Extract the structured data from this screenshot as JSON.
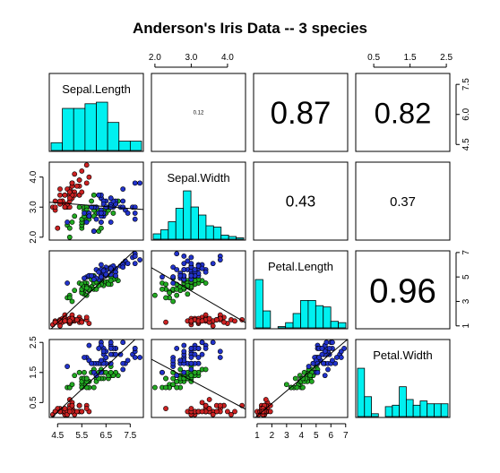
{
  "chart_data": {
    "type": "scatter",
    "title": "Anderson's Iris Data -- 3 species",
    "variables": [
      "Sepal.Length",
      "Sepal.Width",
      "Petal.Length",
      "Petal.Width"
    ],
    "ranges": {
      "Sepal.Length": [
        4.3,
        7.9
      ],
      "Sepal.Width": [
        2.0,
        4.4
      ],
      "Petal.Length": [
        1.0,
        6.9
      ],
      "Petal.Width": [
        0.1,
        2.5
      ]
    },
    "ticks": {
      "Sepal.Length": [
        4.5,
        5.5,
        6.5,
        7.5
      ],
      "Sepal.Width": [
        2.0,
        3.0,
        4.0
      ],
      "Petal.Length": [
        1,
        3,
        5,
        7
      ],
      "Petal.Width": [
        0.5,
        1.5,
        2.5
      ]
    },
    "top_axis_ticks": {
      "Sepal.Width": [
        2.0,
        3.0,
        4.0
      ],
      "Petal.Width": [
        0.5,
        1.5,
        2.5
      ]
    },
    "left_axis_ticks": {
      "Sepal.Width": [
        2.0,
        3.0,
        4.0
      ],
      "Petal.Width": [
        0.5,
        1.5,
        2.5
      ]
    },
    "bottom_axis_ticks": {
      "Sepal.Length": [
        4.5,
        5.5,
        6.5,
        7.5
      ],
      "Petal.Length": [
        1,
        2,
        3,
        4,
        5,
        6,
        7
      ]
    },
    "right_axis_ticks": {
      "Sepal.Length": [
        4.5,
        6.0,
        7.5
      ],
      "Petal.Length": [
        1,
        3,
        5,
        7
      ]
    },
    "correlations": [
      {
        "row": 0,
        "col": 1,
        "text": "0.12"
      },
      {
        "row": 0,
        "col": 2,
        "text": "0.87"
      },
      {
        "row": 0,
        "col": 3,
        "text": "0.82"
      },
      {
        "row": 1,
        "col": 2,
        "text": "0.43"
      },
      {
        "row": 1,
        "col": 3,
        "text": "0.37"
      },
      {
        "row": 2,
        "col": 3,
        "text": "0.96"
      }
    ],
    "histograms": {
      "Sepal.Length": {
        "breaks": [
          4.0,
          4.5,
          5.0,
          5.5,
          6.0,
          6.5,
          7.0,
          7.5,
          8.0
        ],
        "counts": [
          5,
          27,
          27,
          30,
          31,
          18,
          6,
          6
        ]
      },
      "Sepal.Width": {
        "breaks": [
          2.0,
          2.2,
          2.4,
          2.6,
          2.8,
          3.0,
          3.2,
          3.4,
          3.6,
          3.8,
          4.0,
          4.2,
          4.4
        ],
        "counts": [
          4,
          7,
          13,
          23,
          36,
          24,
          18,
          10,
          9,
          3,
          2,
          1
        ]
      },
      "Petal.Length": {
        "breaks": [
          1.0,
          1.5,
          2.0,
          2.5,
          3.0,
          3.5,
          4.0,
          4.5,
          5.0,
          5.5,
          6.0,
          6.5,
          7.0
        ],
        "counts": [
          37,
          13,
          0,
          1,
          4,
          11,
          21,
          21,
          17,
          16,
          5,
          4
        ]
      },
      "Petal.Width": {
        "breaks": [
          0.0,
          0.2,
          0.4,
          0.6,
          0.8,
          1.0,
          1.2,
          1.4,
          1.6,
          1.8,
          2.0,
          2.2,
          2.4,
          2.6
        ],
        "counts": [
          34,
          14,
          2,
          0,
          7,
          8,
          21,
          12,
          8,
          11,
          9,
          9,
          9
        ]
      }
    },
    "fit_lines": [
      {
        "x": "Sepal.Length",
        "y": "Sepal.Width",
        "intercept": 3.419,
        "slope": -0.0619
      },
      {
        "x": "Sepal.Length",
        "y": "Petal.Length",
        "intercept": -7.101,
        "slope": 1.858
      },
      {
        "x": "Sepal.Length",
        "y": "Petal.Width",
        "intercept": -3.2,
        "slope": 0.753
      },
      {
        "x": "Sepal.Width",
        "y": "Petal.Length",
        "intercept": 9.063,
        "slope": -1.735
      },
      {
        "x": "Sepal.Width",
        "y": "Petal.Width",
        "intercept": 3.157,
        "slope": -0.64
      },
      {
        "x": "Petal.Length",
        "y": "Petal.Width",
        "intercept": -0.363,
        "slope": 0.416
      }
    ],
    "species_colors": {
      "setosa": "#cc2222",
      "versicolor": "#22aa22",
      "virginica": "#2233cc"
    },
    "histogram_fill": "#00f0f0",
    "series": [
      {
        "species": "setosa",
        "values": [
          [
            5.1,
            3.5,
            1.4,
            0.2
          ],
          [
            4.9,
            3.0,
            1.4,
            0.2
          ],
          [
            4.7,
            3.2,
            1.3,
            0.2
          ],
          [
            4.6,
            3.1,
            1.5,
            0.2
          ],
          [
            5.0,
            3.6,
            1.4,
            0.2
          ],
          [
            5.4,
            3.9,
            1.7,
            0.4
          ],
          [
            4.6,
            3.4,
            1.4,
            0.3
          ],
          [
            5.0,
            3.4,
            1.5,
            0.2
          ],
          [
            4.4,
            2.9,
            1.4,
            0.2
          ],
          [
            4.9,
            3.1,
            1.5,
            0.1
          ],
          [
            5.4,
            3.7,
            1.5,
            0.2
          ],
          [
            4.8,
            3.4,
            1.6,
            0.2
          ],
          [
            4.8,
            3.0,
            1.4,
            0.1
          ],
          [
            4.3,
            3.0,
            1.1,
            0.1
          ],
          [
            5.8,
            4.0,
            1.2,
            0.2
          ],
          [
            5.7,
            4.4,
            1.5,
            0.4
          ],
          [
            5.4,
            3.9,
            1.3,
            0.4
          ],
          [
            5.1,
            3.5,
            1.4,
            0.3
          ],
          [
            5.7,
            3.8,
            1.7,
            0.3
          ],
          [
            5.1,
            3.8,
            1.5,
            0.3
          ],
          [
            5.4,
            3.4,
            1.7,
            0.2
          ],
          [
            5.1,
            3.7,
            1.5,
            0.4
          ],
          [
            4.6,
            3.6,
            1.0,
            0.2
          ],
          [
            5.1,
            3.3,
            1.7,
            0.5
          ],
          [
            4.8,
            3.4,
            1.9,
            0.2
          ],
          [
            5.0,
            3.0,
            1.6,
            0.2
          ],
          [
            5.0,
            3.4,
            1.6,
            0.4
          ],
          [
            5.2,
            3.5,
            1.5,
            0.2
          ],
          [
            5.2,
            3.4,
            1.4,
            0.2
          ],
          [
            4.7,
            3.2,
            1.6,
            0.2
          ],
          [
            4.8,
            3.1,
            1.6,
            0.2
          ],
          [
            5.4,
            3.4,
            1.5,
            0.4
          ],
          [
            5.2,
            4.1,
            1.5,
            0.1
          ],
          [
            5.5,
            4.2,
            1.4,
            0.2
          ],
          [
            4.9,
            3.1,
            1.5,
            0.2
          ],
          [
            5.0,
            3.2,
            1.2,
            0.2
          ],
          [
            5.5,
            3.5,
            1.3,
            0.2
          ],
          [
            4.9,
            3.6,
            1.4,
            0.1
          ],
          [
            4.4,
            3.0,
            1.3,
            0.2
          ],
          [
            5.1,
            3.4,
            1.5,
            0.2
          ],
          [
            5.0,
            3.5,
            1.3,
            0.3
          ],
          [
            4.5,
            2.3,
            1.3,
            0.3
          ],
          [
            4.4,
            3.2,
            1.3,
            0.2
          ],
          [
            5.0,
            3.5,
            1.6,
            0.6
          ],
          [
            5.1,
            3.8,
            1.9,
            0.4
          ],
          [
            4.8,
            3.0,
            1.4,
            0.3
          ],
          [
            5.1,
            3.8,
            1.6,
            0.2
          ],
          [
            4.6,
            3.2,
            1.4,
            0.2
          ],
          [
            5.3,
            3.7,
            1.5,
            0.2
          ],
          [
            5.0,
            3.3,
            1.4,
            0.2
          ]
        ]
      },
      {
        "species": "versicolor",
        "values": [
          [
            7.0,
            3.2,
            4.7,
            1.4
          ],
          [
            6.4,
            3.2,
            4.5,
            1.5
          ],
          [
            6.9,
            3.1,
            4.9,
            1.5
          ],
          [
            5.5,
            2.3,
            4.0,
            1.3
          ],
          [
            6.5,
            2.8,
            4.6,
            1.5
          ],
          [
            5.7,
            2.8,
            4.5,
            1.3
          ],
          [
            6.3,
            3.3,
            4.7,
            1.6
          ],
          [
            4.9,
            2.4,
            3.3,
            1.0
          ],
          [
            6.6,
            2.9,
            4.6,
            1.3
          ],
          [
            5.2,
            2.7,
            3.9,
            1.4
          ],
          [
            5.0,
            2.0,
            3.5,
            1.0
          ],
          [
            5.9,
            3.0,
            4.2,
            1.5
          ],
          [
            6.0,
            2.2,
            4.0,
            1.0
          ],
          [
            6.1,
            2.9,
            4.7,
            1.4
          ],
          [
            5.6,
            2.9,
            3.6,
            1.3
          ],
          [
            6.7,
            3.1,
            4.4,
            1.4
          ],
          [
            5.6,
            3.0,
            4.5,
            1.5
          ],
          [
            5.8,
            2.7,
            4.1,
            1.0
          ],
          [
            6.2,
            2.2,
            4.5,
            1.5
          ],
          [
            5.6,
            2.5,
            3.9,
            1.1
          ],
          [
            5.9,
            3.2,
            4.8,
            1.8
          ],
          [
            6.1,
            2.8,
            4.0,
            1.3
          ],
          [
            6.3,
            2.5,
            4.9,
            1.5
          ],
          [
            6.1,
            2.8,
            4.7,
            1.2
          ],
          [
            6.4,
            2.9,
            4.3,
            1.3
          ],
          [
            6.6,
            3.0,
            4.4,
            1.4
          ],
          [
            6.8,
            2.8,
            4.8,
            1.4
          ],
          [
            6.7,
            3.0,
            5.0,
            1.7
          ],
          [
            6.0,
            2.9,
            4.5,
            1.5
          ],
          [
            5.7,
            2.6,
            3.5,
            1.0
          ],
          [
            5.5,
            2.4,
            3.8,
            1.1
          ],
          [
            5.5,
            2.4,
            3.7,
            1.0
          ],
          [
            5.8,
            2.7,
            3.9,
            1.2
          ],
          [
            6.0,
            2.7,
            5.1,
            1.6
          ],
          [
            5.4,
            3.0,
            4.5,
            1.5
          ],
          [
            6.0,
            3.4,
            4.5,
            1.6
          ],
          [
            6.7,
            3.1,
            4.7,
            1.5
          ],
          [
            6.3,
            2.3,
            4.4,
            1.3
          ],
          [
            5.6,
            3.0,
            4.1,
            1.3
          ],
          [
            5.5,
            2.5,
            4.0,
            1.3
          ],
          [
            5.5,
            2.6,
            4.4,
            1.2
          ],
          [
            6.1,
            3.0,
            4.6,
            1.4
          ],
          [
            5.8,
            2.6,
            4.0,
            1.2
          ],
          [
            5.0,
            2.3,
            3.3,
            1.0
          ],
          [
            5.6,
            2.7,
            4.2,
            1.3
          ],
          [
            5.7,
            3.0,
            4.2,
            1.2
          ],
          [
            5.7,
            2.9,
            4.2,
            1.3
          ],
          [
            6.2,
            2.9,
            4.3,
            1.3
          ],
          [
            5.1,
            2.5,
            3.0,
            1.1
          ],
          [
            5.7,
            2.8,
            4.1,
            1.3
          ]
        ]
      },
      {
        "species": "virginica",
        "values": [
          [
            6.3,
            3.3,
            6.0,
            2.5
          ],
          [
            5.8,
            2.7,
            5.1,
            1.9
          ],
          [
            7.1,
            3.0,
            5.9,
            2.1
          ],
          [
            6.3,
            2.9,
            5.6,
            1.8
          ],
          [
            6.5,
            3.0,
            5.8,
            2.2
          ],
          [
            7.6,
            3.0,
            6.6,
            2.1
          ],
          [
            4.9,
            2.5,
            4.5,
            1.7
          ],
          [
            7.3,
            2.9,
            6.3,
            1.8
          ],
          [
            6.7,
            2.5,
            5.8,
            1.8
          ],
          [
            7.2,
            3.6,
            6.1,
            2.5
          ],
          [
            6.5,
            3.2,
            5.1,
            2.0
          ],
          [
            6.4,
            2.7,
            5.3,
            1.9
          ],
          [
            6.8,
            3.0,
            5.5,
            2.1
          ],
          [
            5.7,
            2.5,
            5.0,
            2.0
          ],
          [
            5.8,
            2.8,
            5.1,
            2.4
          ],
          [
            6.4,
            3.2,
            5.3,
            2.3
          ],
          [
            6.5,
            3.0,
            5.5,
            1.8
          ],
          [
            7.7,
            3.8,
            6.7,
            2.2
          ],
          [
            7.7,
            2.6,
            6.9,
            2.3
          ],
          [
            6.0,
            2.2,
            5.0,
            1.5
          ],
          [
            6.9,
            3.2,
            5.7,
            2.3
          ],
          [
            5.6,
            2.8,
            4.9,
            2.0
          ],
          [
            7.7,
            2.8,
            6.7,
            2.0
          ],
          [
            6.3,
            2.7,
            4.9,
            1.8
          ],
          [
            6.7,
            3.3,
            5.7,
            2.1
          ],
          [
            7.2,
            3.2,
            6.0,
            1.8
          ],
          [
            6.2,
            2.8,
            4.8,
            1.8
          ],
          [
            6.1,
            3.0,
            4.9,
            1.8
          ],
          [
            6.4,
            2.8,
            5.6,
            2.1
          ],
          [
            7.2,
            3.0,
            5.8,
            1.6
          ],
          [
            7.4,
            2.8,
            6.1,
            1.9
          ],
          [
            7.9,
            3.8,
            6.4,
            2.0
          ],
          [
            6.4,
            2.8,
            5.6,
            2.2
          ],
          [
            6.3,
            2.8,
            5.1,
            1.5
          ],
          [
            6.1,
            2.6,
            5.6,
            1.4
          ],
          [
            7.7,
            3.0,
            6.1,
            2.3
          ],
          [
            6.3,
            3.4,
            5.6,
            2.4
          ],
          [
            6.4,
            3.1,
            5.5,
            1.8
          ],
          [
            6.0,
            3.0,
            4.8,
            1.8
          ],
          [
            6.9,
            3.1,
            5.4,
            2.1
          ],
          [
            6.7,
            3.1,
            5.6,
            2.4
          ],
          [
            6.9,
            3.1,
            5.1,
            2.3
          ],
          [
            5.8,
            2.7,
            5.1,
            1.9
          ],
          [
            6.8,
            3.2,
            5.9,
            2.3
          ],
          [
            6.7,
            3.3,
            5.7,
            2.5
          ],
          [
            6.7,
            3.0,
            5.2,
            2.3
          ],
          [
            6.3,
            2.5,
            5.0,
            1.9
          ],
          [
            6.5,
            3.0,
            5.2,
            2.0
          ],
          [
            6.2,
            3.4,
            5.4,
            2.3
          ],
          [
            5.9,
            3.0,
            5.1,
            1.8
          ]
        ]
      }
    ]
  }
}
